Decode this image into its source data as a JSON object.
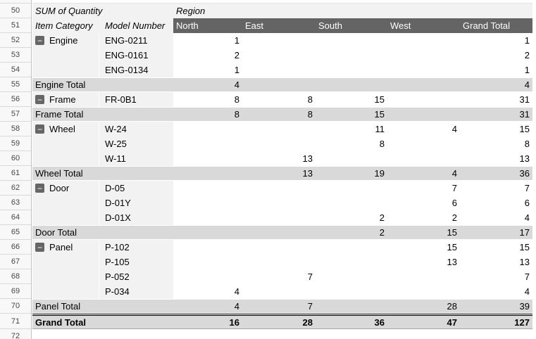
{
  "colors": {
    "value_header_bg": "#646464",
    "value_header_text": "#ffffff",
    "label_area_bg": "#f2f2f2",
    "total_row_bg": "#d9d9d9",
    "gutter_bg": "#f8f8f8"
  },
  "icons": {
    "collapse_glyph": "−"
  },
  "gutter": {
    "row_numbers": [
      50,
      51,
      52,
      53,
      54,
      55,
      56,
      57,
      58,
      59,
      60,
      61,
      62,
      63,
      64,
      65,
      66,
      67,
      68,
      69,
      70,
      71,
      72
    ]
  },
  "pivot": {
    "title": "SUM of Quantity",
    "region_label": "Region",
    "col1_header": "Item Category",
    "col2_header": "Model Number",
    "value_headers": [
      "North",
      "East",
      "South",
      "West",
      "Grand Total"
    ],
    "rows": [
      {
        "row": 52,
        "type": "item",
        "category": "Engine",
        "model": "ENG-0211",
        "values": [
          "1",
          "",
          "",
          "",
          "1"
        ]
      },
      {
        "row": 53,
        "type": "item",
        "category": "",
        "model": "ENG-0161",
        "values": [
          "2",
          "",
          "",
          "",
          "2"
        ]
      },
      {
        "row": 54,
        "type": "item",
        "category": "",
        "model": "ENG-0134",
        "values": [
          "1",
          "",
          "",
          "",
          "1"
        ]
      },
      {
        "row": 55,
        "type": "total",
        "label": "Engine Total",
        "values": [
          "4",
          "",
          "",
          "",
          "4"
        ]
      },
      {
        "row": 56,
        "type": "item",
        "category": "Frame",
        "model": "FR-0B1",
        "values": [
          "8",
          "8",
          "15",
          "",
          "31"
        ]
      },
      {
        "row": 57,
        "type": "total",
        "label": "Frame Total",
        "values": [
          "8",
          "8",
          "15",
          "",
          "31"
        ]
      },
      {
        "row": 58,
        "type": "item",
        "category": "Wheel",
        "model": "W-24",
        "values": [
          "",
          "",
          "11",
          "4",
          "15"
        ]
      },
      {
        "row": 59,
        "type": "item",
        "category": "",
        "model": "W-25",
        "values": [
          "",
          "",
          "8",
          "",
          "8"
        ]
      },
      {
        "row": 60,
        "type": "item",
        "category": "",
        "model": "W-11",
        "values": [
          "",
          "13",
          "",
          "",
          "13"
        ]
      },
      {
        "row": 61,
        "type": "total",
        "label": "Wheel Total",
        "values": [
          "",
          "13",
          "19",
          "4",
          "36"
        ]
      },
      {
        "row": 62,
        "type": "item",
        "category": "Door",
        "model": "D-05",
        "values": [
          "",
          "",
          "",
          "7",
          "7"
        ]
      },
      {
        "row": 63,
        "type": "item",
        "category": "",
        "model": "D-01Y",
        "values": [
          "",
          "",
          "",
          "6",
          "6"
        ]
      },
      {
        "row": 64,
        "type": "item",
        "category": "",
        "model": "D-01X",
        "values": [
          "",
          "",
          "2",
          "2",
          "4"
        ]
      },
      {
        "row": 65,
        "type": "total",
        "label": "Door Total",
        "values": [
          "",
          "",
          "2",
          "15",
          "17"
        ]
      },
      {
        "row": 66,
        "type": "item",
        "category": "Panel",
        "model": "P-102",
        "values": [
          "",
          "",
          "",
          "15",
          "15"
        ]
      },
      {
        "row": 67,
        "type": "item",
        "category": "",
        "model": "P-105",
        "values": [
          "",
          "",
          "",
          "13",
          "13"
        ]
      },
      {
        "row": 68,
        "type": "item",
        "category": "",
        "model": "P-052",
        "values": [
          "",
          "7",
          "",
          "",
          "7"
        ]
      },
      {
        "row": 69,
        "type": "item",
        "category": "",
        "model": "P-034",
        "values": [
          "4",
          "",
          "",
          "",
          "4"
        ]
      },
      {
        "row": 70,
        "type": "total",
        "label": "Panel Total",
        "values": [
          "4",
          "7",
          "",
          "28",
          "39"
        ]
      },
      {
        "row": 71,
        "type": "grand",
        "label": "Grand Total",
        "values": [
          "16",
          "28",
          "36",
          "47",
          "127"
        ]
      }
    ]
  }
}
